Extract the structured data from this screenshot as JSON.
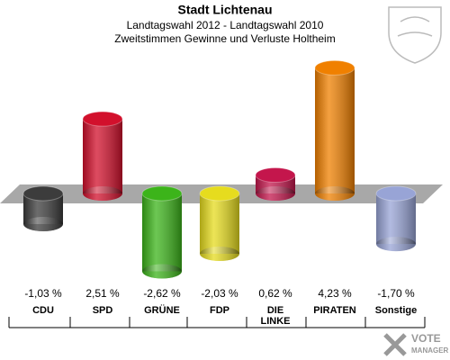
{
  "chart_data": {
    "type": "bar",
    "title": "Stadt Lichtenau",
    "subtitle": [
      "Landtagswahl 2012 - Landtagswahl 2010",
      "Zweitstimmen Gewinne und Verluste Holtheim"
    ],
    "categories": [
      "CDU",
      "SPD",
      "GRÜNE",
      "FDP",
      "DIE\nLINKE",
      "PIRATEN",
      "Sonstige"
    ],
    "values": [
      -1.03,
      2.51,
      -2.62,
      -2.03,
      0.62,
      4.23,
      -1.7
    ],
    "value_labels": [
      "-1,03 %",
      "2,51 %",
      "-2,62 %",
      "-2,03 %",
      "0,62 %",
      "4,23 %",
      "-1,70 %"
    ],
    "colors": [
      "#3c3c3c",
      "#d2102c",
      "#3cb41a",
      "#e6dc1e",
      "#c4164c",
      "#f08000",
      "#98a4d6"
    ],
    "branding": [
      "VOTE",
      "MANAGER"
    ]
  }
}
